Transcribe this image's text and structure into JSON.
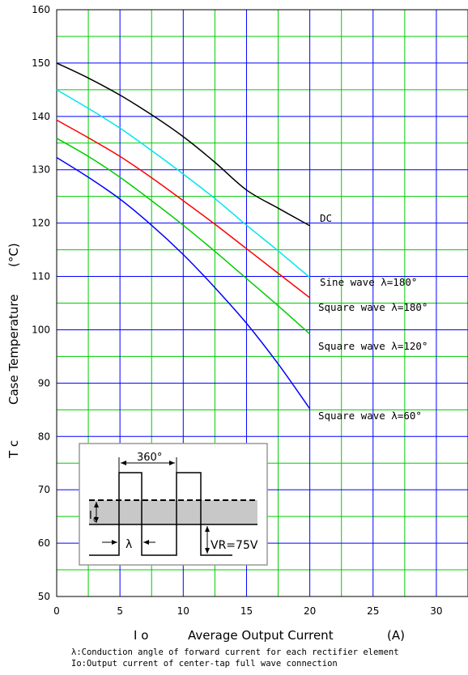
{
  "chart_data": {
    "type": "line",
    "xlabel_symbol": "I o",
    "xlabel": "Average Output Current",
    "xlabel_unit": "(A)",
    "ylabel_symbol": "T c",
    "ylabel": "Case Temperature",
    "ylabel_unit": "(°C)",
    "xlim": [
      0,
      32.5
    ],
    "ylim": [
      50,
      160
    ],
    "x_ticks": [
      0,
      5,
      10,
      15,
      20,
      25,
      30
    ],
    "y_ticks": [
      50,
      60,
      70,
      80,
      90,
      100,
      110,
      120,
      130,
      140,
      150,
      160
    ],
    "major_grid_color": "#0000ff",
    "minor_grid_color": "#00cc00",
    "grid": true,
    "series": [
      {
        "name": "DC",
        "color": "#000000",
        "x": [
          0,
          2.5,
          5,
          7.5,
          10,
          12.5,
          15,
          17.5,
          20
        ],
        "y": [
          150,
          147.2,
          144,
          140.3,
          136.2,
          131.4,
          126.2,
          122.8,
          119.5
        ]
      },
      {
        "name": "Sine wave λ=180°",
        "color": "#00e5ee",
        "x": [
          0,
          2.5,
          5,
          7.5,
          10,
          12.5,
          15,
          17.5,
          20
        ],
        "y": [
          145,
          141.5,
          137.8,
          133.6,
          129.2,
          124.6,
          119.6,
          114.8,
          109.8
        ]
      },
      {
        "name": "Square wave λ=180°",
        "color": "#ff0000",
        "x": [
          0,
          2.5,
          5,
          7.5,
          10,
          12.5,
          15,
          17.5,
          20
        ],
        "y": [
          139.3,
          136,
          132.5,
          128.5,
          124.2,
          119.8,
          115.2,
          110.6,
          106
        ]
      },
      {
        "name": "Square wave λ=120°",
        "color": "#00cc00",
        "x": [
          0,
          2.5,
          5,
          7.5,
          10,
          12.5,
          15,
          17.5,
          20
        ],
        "y": [
          135.9,
          132.5,
          128.6,
          124.2,
          119.6,
          114.7,
          109.6,
          104.5,
          99.2
        ]
      },
      {
        "name": "Square wave λ=60°",
        "color": "#0000ff",
        "x": [
          0,
          2.5,
          5,
          7.5,
          10,
          12.5,
          15,
          17.5,
          20
        ],
        "y": [
          132.3,
          128.6,
          124.5,
          119.6,
          114.1,
          107.9,
          101.2,
          93.6,
          85.2
        ]
      }
    ],
    "inset": {
      "period_label": "360°",
      "io_label": "I",
      "io_subscript": "0",
      "lambda_label": "λ",
      "vr_label": "VR=75V"
    },
    "footnotes": [
      "λ:Conduction angle of forward current for each rectifier element",
      "Io:Output current of center-tap full wave connection"
    ]
  }
}
